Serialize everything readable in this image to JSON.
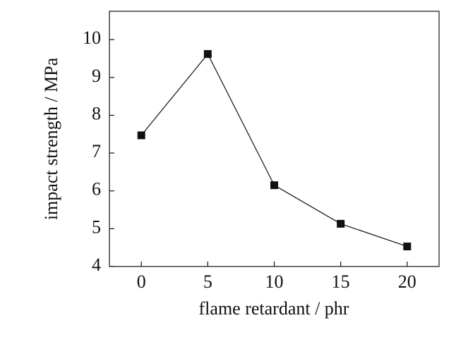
{
  "chart_data": {
    "type": "line",
    "xlabel": "flame retardant / phr",
    "ylabel": "impact strength / MPa",
    "x": [
      0,
      5,
      10,
      15,
      20
    ],
    "series": [
      {
        "name": null,
        "color": "#111111",
        "values": [
          7.47,
          9.62,
          6.15,
          5.13,
          4.53
        ]
      }
    ],
    "xlim": [
      -2.4,
      22.4
    ],
    "xticks": [
      0,
      5,
      10,
      15,
      20
    ],
    "ylim": [
      4,
      10.75
    ],
    "yticks": [
      4,
      5,
      6,
      7,
      8,
      9,
      10
    ],
    "marker": "square",
    "grid": false
  }
}
